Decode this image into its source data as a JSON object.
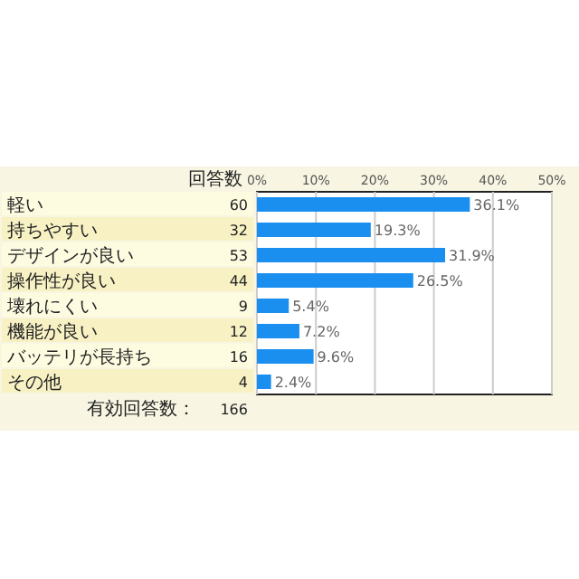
{
  "chart_data": {
    "type": "bar",
    "orientation": "horizontal",
    "categories": [
      "軽い",
      "持ちやすい",
      "デザインが良い",
      "操作性が良い",
      "壊れにくい",
      "機能が良い",
      "バッテリが長持ち",
      "その他"
    ],
    "series": [
      {
        "color": "#1a8ff0",
        "values": [
          36.1,
          19.3,
          31.9,
          26.5,
          5.4,
          7.2,
          9.6,
          2.4
        ]
      }
    ],
    "value_labels": [
      "36.1%",
      "19.3%",
      "31.9%",
      "26.5%",
      "5.4%",
      "7.2%",
      "9.6%",
      "2.4%"
    ],
    "xlim": [
      0,
      50
    ],
    "xticks": [
      {
        "value": 0,
        "label": "0%"
      },
      {
        "value": 10,
        "label": "10%"
      },
      {
        "value": 20,
        "label": "20%"
      },
      {
        "value": 30,
        "label": "30%"
      },
      {
        "value": 40,
        "label": "40%"
      },
      {
        "value": 50,
        "label": "50%"
      }
    ],
    "grid": "x",
    "annotations": [
      "回答数",
      "有効回答数：",
      "166",
      "60",
      "32",
      "53",
      "44",
      "9",
      "12",
      "16",
      "4"
    ]
  }
}
